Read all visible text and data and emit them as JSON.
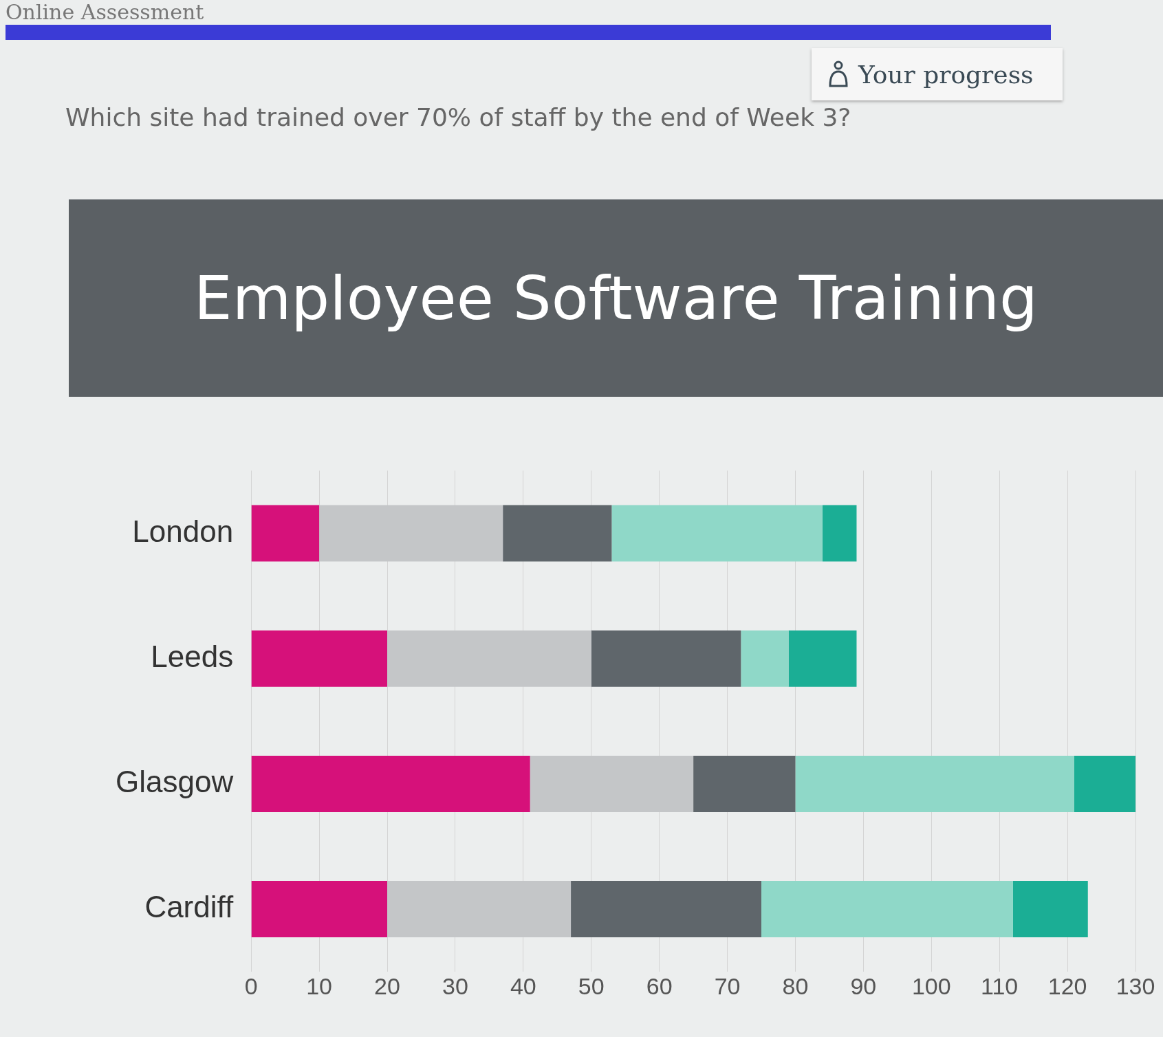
{
  "chart_data": {
    "type": "bar",
    "orientation": "horizontal",
    "stacked": true,
    "title": "Employee Software Training",
    "annotations": [
      "Online Assessment",
      "Which site had trained over 70% of staff by the end of Week 3?",
      "Your progress"
    ],
    "categories": [
      "London",
      "Leeds",
      "Glasgow",
      "Cardiff"
    ],
    "series": [
      {
        "color": "#d6117a",
        "values": [
          10,
          20,
          41,
          20
        ]
      },
      {
        "color": "#c4c6c8",
        "values": [
          27,
          30,
          24,
          27
        ]
      },
      {
        "color": "#5f666b",
        "values": [
          16,
          22,
          15,
          28
        ]
      },
      {
        "color": "#8fd8c8",
        "values": [
          31,
          7,
          41,
          37
        ]
      },
      {
        "color": "#1bae95",
        "values": [
          5,
          10,
          9,
          11
        ]
      }
    ],
    "xlim": [
      0,
      130
    ],
    "xticks": [
      0,
      10,
      20,
      30,
      40,
      50,
      60,
      70,
      80,
      90,
      100,
      110,
      120,
      130
    ],
    "grid": "x",
    "legend": false
  }
}
